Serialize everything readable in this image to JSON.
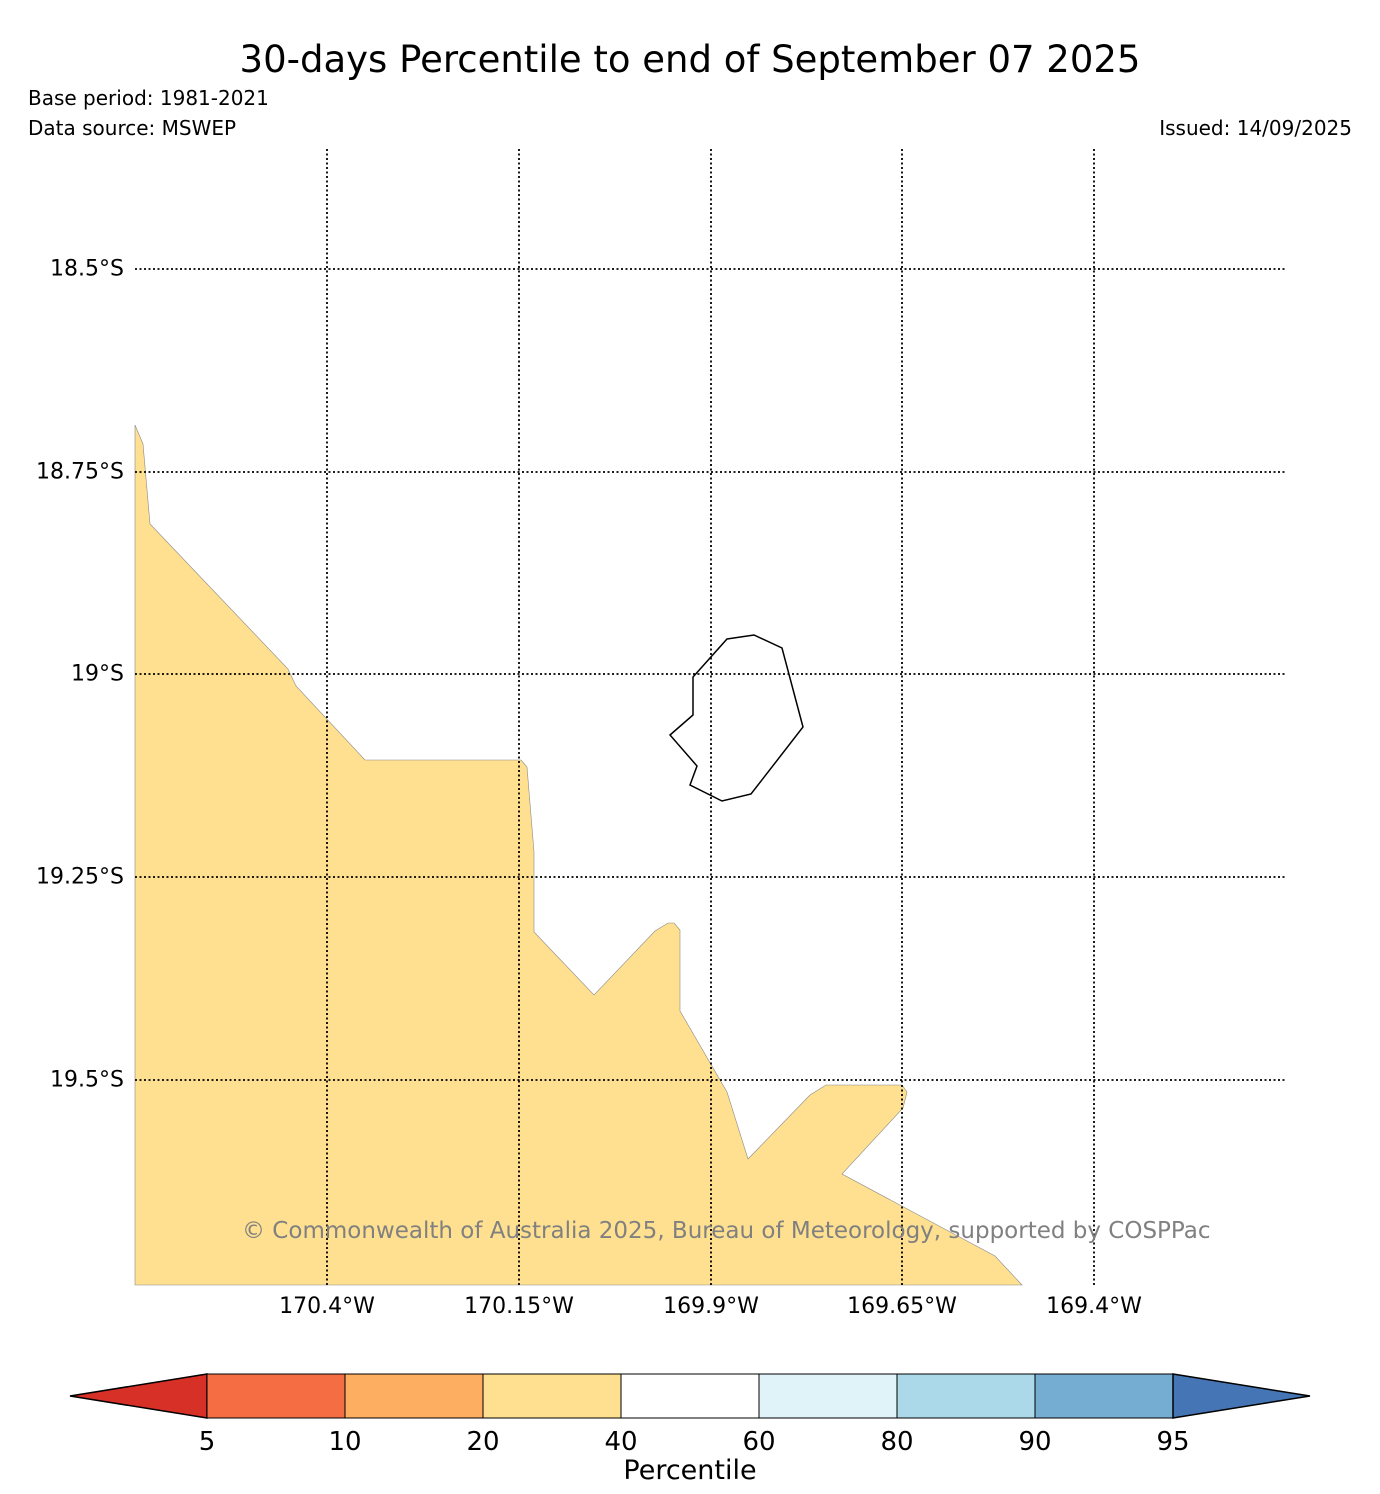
{
  "header": {
    "title": "30-days Percentile to end of September 07 2025",
    "base_period": "Base period: 1981-2021",
    "data_source": "Data source: MSWEP",
    "issued": "Issued: 14/09/2025"
  },
  "map": {
    "lat_labels": [
      "18.5°S",
      "18.75°S",
      "19°S",
      "19.25°S",
      "19.5°S"
    ],
    "lon_labels": [
      "170.4°W",
      "170.15°W",
      "169.9°W",
      "169.65°W",
      "169.4°W"
    ],
    "fill_class_color": "#fee090",
    "fill_class_range": "20-40",
    "island_outline_color": "#000000",
    "copyright": "© Commonwealth of Australia 2025, Bureau of Meteorology, supported by COSPPac"
  },
  "colorbar": {
    "label": "Percentile",
    "ticks": [
      "5",
      "10",
      "20",
      "40",
      "60",
      "80",
      "90",
      "95"
    ],
    "colors": [
      "#d73027",
      "#f46d43",
      "#fdae61",
      "#fee090",
      "#ffffff",
      "#e0f3f8",
      "#abd9e9",
      "#74add1",
      "#4575b4"
    ]
  }
}
